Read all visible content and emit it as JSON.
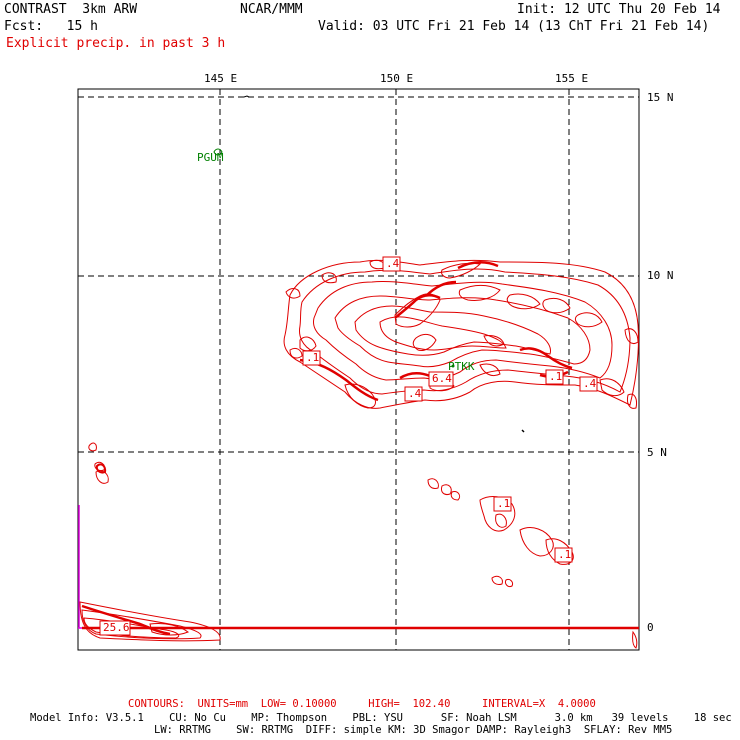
{
  "header": {
    "model": "CONTRAST  3km ARW",
    "org": "NCAR/MMM",
    "init": "Init: 12 UTC Thu 20 Feb 14",
    "fcst": "Fcst:   15 h",
    "valid": "Valid: 03 UTC Fri 21 Feb 14 (13 ChT Fri 21 Feb 14)",
    "field": "Explicit precip. in past 3 h"
  },
  "axes": {
    "lon_labels": [
      "145 E",
      "150 E",
      "155 E"
    ],
    "lat_labels": [
      "15 N",
      "10 N",
      "5 N",
      "0"
    ]
  },
  "stations": [
    "PGUM",
    "PTKK"
  ],
  "contour_labels": [
    ".4",
    ".1",
    "6.4",
    ".4",
    ".1",
    ".4",
    ".1",
    ".1",
    "25.6"
  ],
  "footer": {
    "contours": "CONTOURS:  UNITS=mm  LOW= 0.10000     HIGH=  102.40     INTERVAL=X  4.0000",
    "model_info_1": "Model Info: V3.5.1    CU: No Cu    MP: Thompson    PBL: YSU      SF: Noah LSM      3.0 km   39 levels    18 sec",
    "model_info_2": "LW: RRTMG    SW: RRTMG  DIFF: simple KM: 3D Smagor DAMP: Rayleigh3  SFLAY: Rev MM5"
  },
  "colors": {
    "contour": "#e00000",
    "station": "#008000",
    "highlight": "#e000e0"
  }
}
